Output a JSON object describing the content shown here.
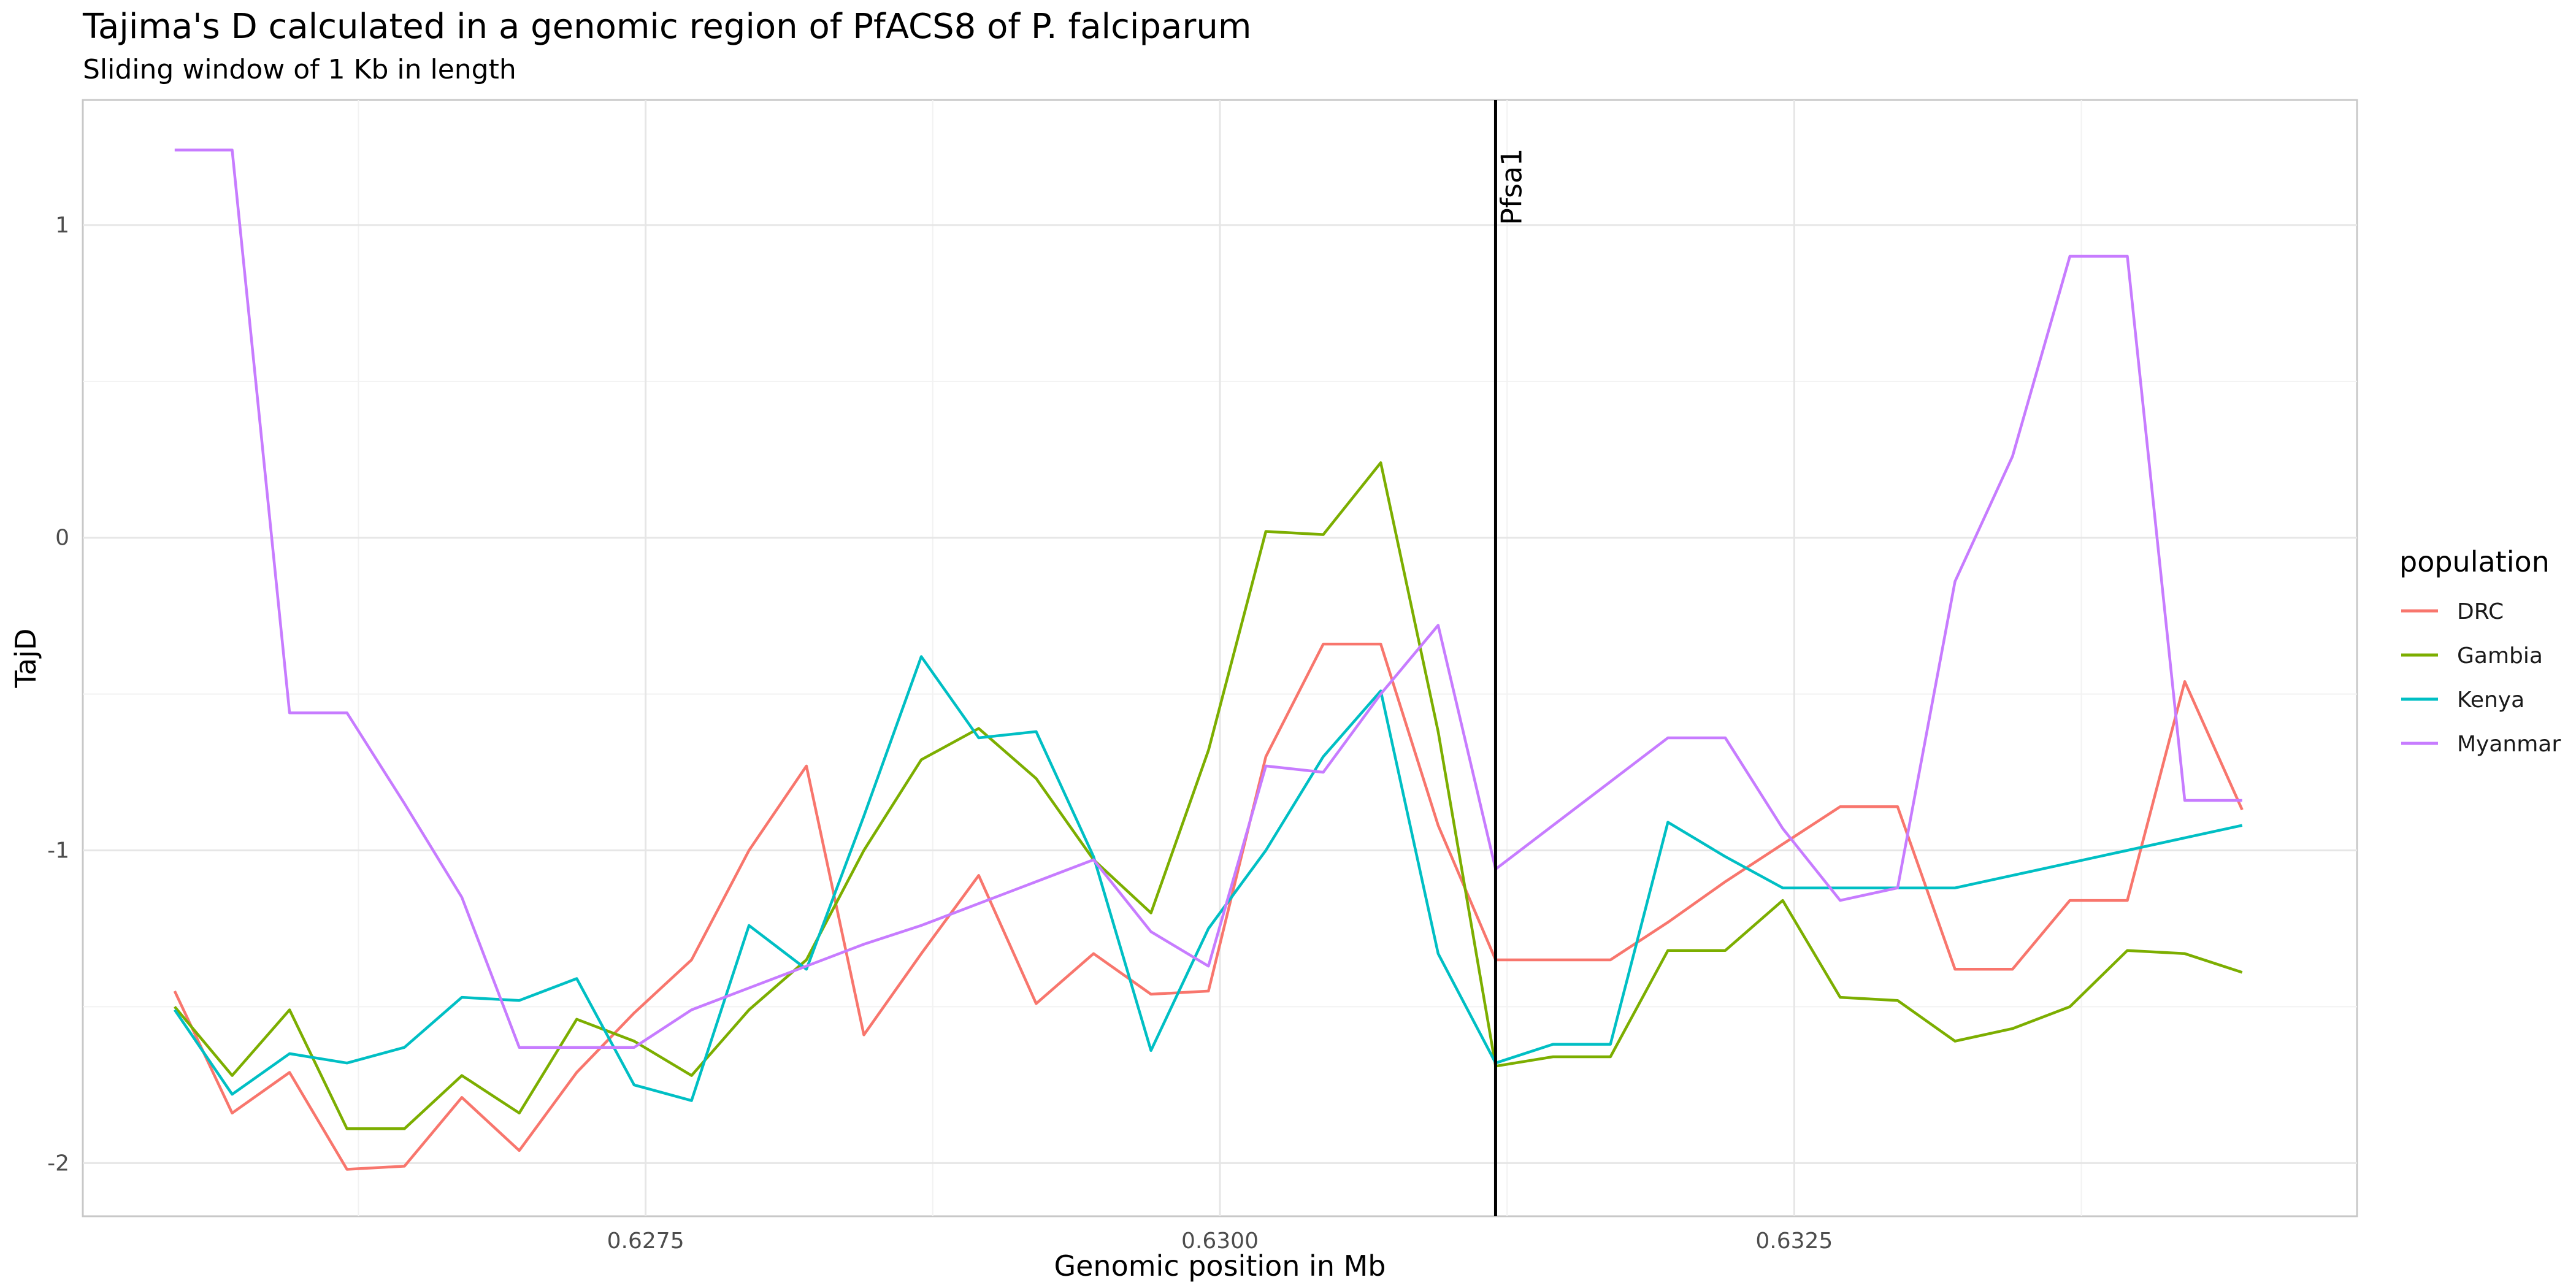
{
  "chart_data": {
    "type": "line",
    "title": "Tajima's D calculated in a genomic region of PfACS8 of P. falciparum",
    "subtitle": "Sliding window of 1 Kb in length",
    "xlabel": "Genomic position in Mb",
    "ylabel": "TajD",
    "xlim": [
      0.62505,
      0.63495
    ],
    "ylim": [
      -2.17,
      1.4
    ],
    "x_ticks": [
      0.6275,
      0.63,
      0.6325
    ],
    "x_tick_labels": [
      "0.6275",
      "0.6300",
      "0.6325"
    ],
    "y_ticks": [
      -2,
      -1,
      0,
      1
    ],
    "y_tick_labels": [
      "-2",
      "-1",
      "0",
      "1"
    ],
    "grid": true,
    "legend": {
      "title": "population",
      "position": "right"
    },
    "annotation": {
      "label": "Pfsa1",
      "x": 0.6312
    },
    "x": [
      0.62545,
      0.6257,
      0.62595,
      0.6262,
      0.62645,
      0.6267,
      0.62695,
      0.6272,
      0.62745,
      0.6277,
      0.62795,
      0.6282,
      0.62845,
      0.6287,
      0.62895,
      0.6292,
      0.62945,
      0.6297,
      0.62995,
      0.6302,
      0.63045,
      0.6307,
      0.63095,
      0.6312,
      0.63145,
      0.6317,
      0.63195,
      0.6322,
      0.63245,
      0.6327,
      0.63295,
      0.6332,
      0.63345,
      0.6337,
      0.63395,
      0.6342,
      0.63445
    ],
    "series": [
      {
        "name": "DRC",
        "color": "#F8766D",
        "values": [
          -1.45,
          -1.84,
          -1.71,
          -2.02,
          -2.01,
          -1.79,
          -1.96,
          -1.71,
          -1.52,
          -1.35,
          -1.0,
          -0.73,
          -1.59,
          -1.33,
          -1.08,
          -1.49,
          -1.33,
          -1.46,
          -1.45,
          -0.7,
          -0.34,
          -0.34,
          -0.92,
          -1.35,
          -1.35,
          -1.35,
          -1.23,
          -1.1,
          -0.98,
          -0.86,
          -0.86,
          -1.38,
          -1.38,
          -1.16,
          -1.16,
          -0.46,
          -0.87
        ]
      },
      {
        "name": "Gambia",
        "color": "#7CAE00",
        "values": [
          -1.5,
          -1.72,
          -1.51,
          -1.89,
          -1.89,
          -1.72,
          -1.84,
          -1.54,
          -1.61,
          -1.72,
          -1.51,
          -1.35,
          -1.0,
          -0.71,
          -0.61,
          -0.77,
          -1.03,
          -1.2,
          -0.68,
          0.02,
          0.01,
          0.24,
          -0.62,
          -1.69,
          -1.66,
          -1.66,
          -1.32,
          -1.32,
          -1.16,
          -1.47,
          -1.48,
          -1.61,
          -1.57,
          -1.5,
          -1.32,
          -1.33,
          -1.39
        ]
      },
      {
        "name": "Kenya",
        "color": "#00BFC4",
        "values": [
          -1.51,
          -1.78,
          -1.65,
          -1.68,
          -1.63,
          -1.47,
          -1.48,
          -1.41,
          -1.75,
          -1.8,
          -1.24,
          -1.38,
          -0.89,
          -0.38,
          -0.64,
          -0.62,
          -1.02,
          -1.64,
          -1.25,
          -1.0,
          -0.7,
          -0.49,
          -1.33,
          -1.68,
          -1.62,
          -1.62,
          -0.91,
          -1.02,
          -1.12,
          -1.12,
          -1.12,
          -1.12,
          -1.08,
          -1.04,
          -1.0,
          -0.96,
          -0.92
        ]
      },
      {
        "name": "Myanmar",
        "color": "#C77CFF",
        "values": [
          1.24,
          1.24,
          -0.56,
          -0.56,
          -0.85,
          -1.15,
          -1.63,
          -1.63,
          -1.63,
          -1.51,
          -1.44,
          -1.37,
          -1.3,
          -1.24,
          -1.17,
          -1.1,
          -1.03,
          -1.26,
          -1.37,
          -0.73,
          -0.75,
          -0.5,
          -0.28,
          -1.06,
          -0.92,
          -0.78,
          -0.64,
          -0.64,
          -0.93,
          -1.16,
          -1.12,
          -0.14,
          0.26,
          0.9,
          0.9,
          -0.84,
          -0.84
        ]
      }
    ]
  }
}
